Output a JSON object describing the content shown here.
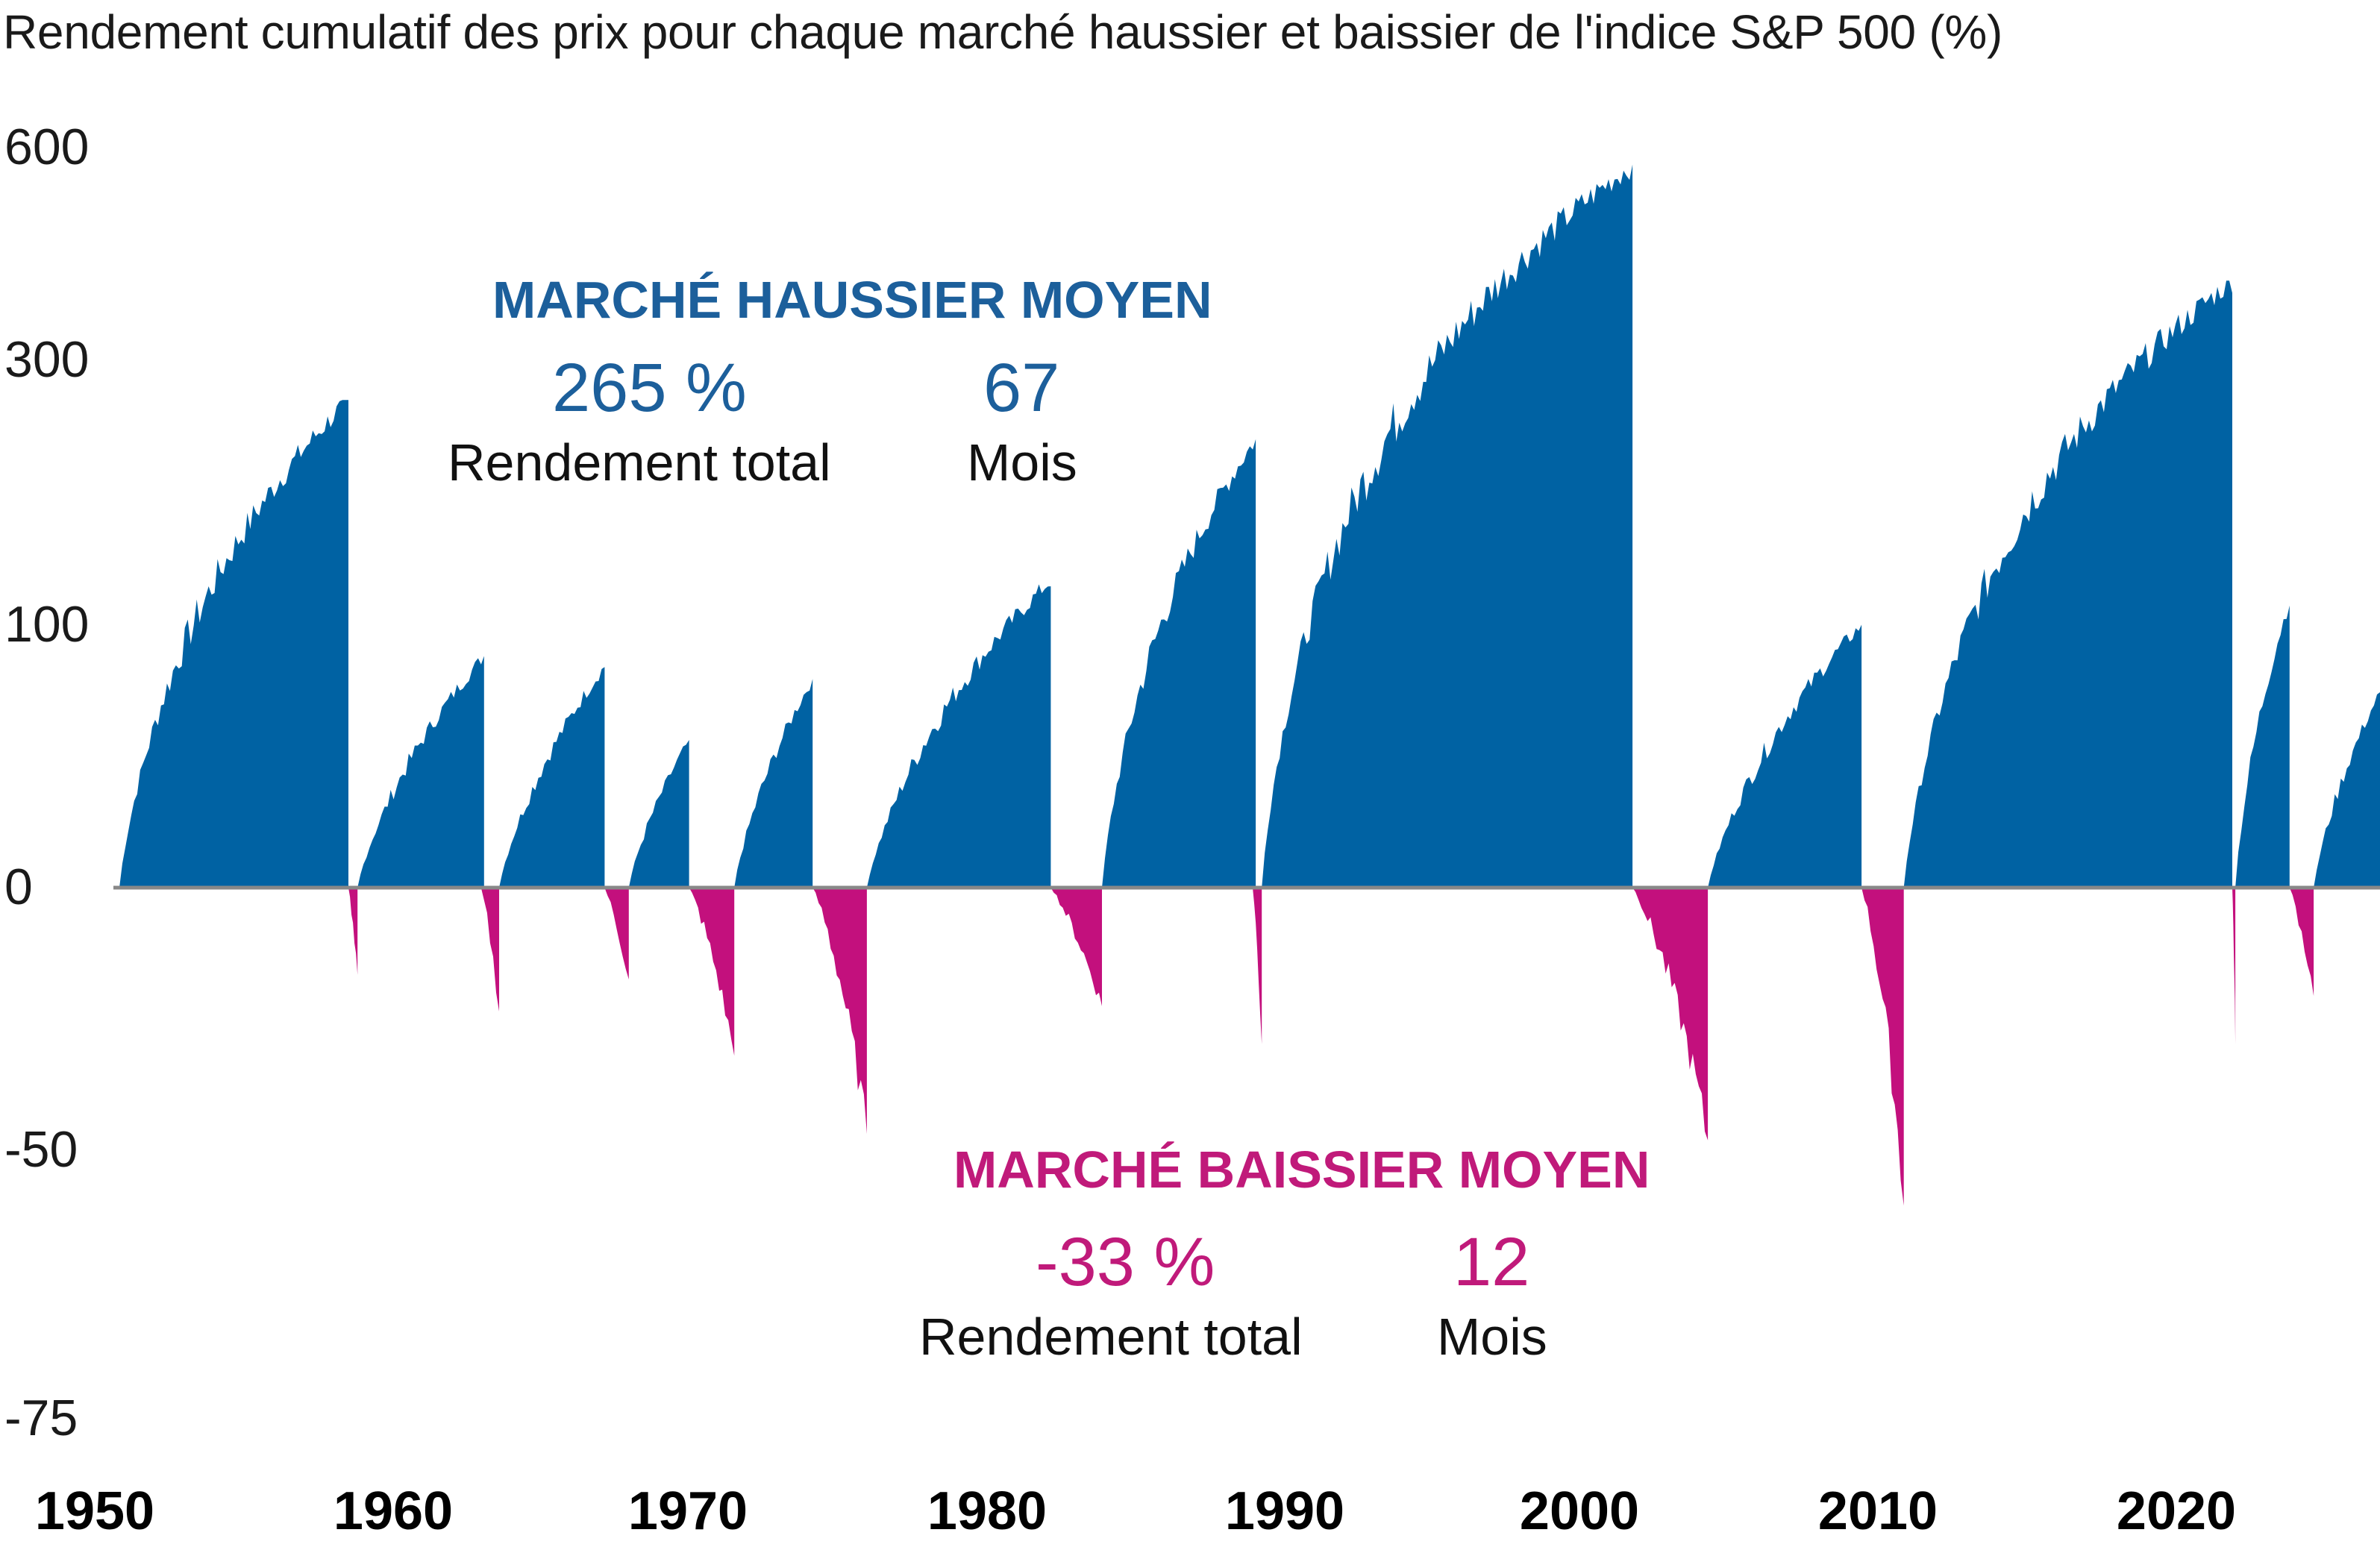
{
  "title": "Rendement cumulatif des prix pour chaque marché haussier et baissier de l'indice S&P 500 (%)",
  "colors": {
    "bull": "#0062a3",
    "bear": "#c3107d",
    "axis": "#888888",
    "text": "#1a1a1a"
  },
  "annotations": {
    "bull": {
      "heading": "MARCHÉ HAUSSIER MOYEN",
      "return_value": "265 %",
      "return_label": "Rendement total",
      "months_value": "67",
      "months_label": "Mois"
    },
    "bear": {
      "heading": "MARCHÉ BAISSIER MOYEN",
      "return_value": "-33 %",
      "return_label": "Rendement total",
      "months_value": "12",
      "months_label": "Mois"
    }
  },
  "chart_data": {
    "type": "area",
    "title": "Rendement cumulatif des prix pour chaque marché haussier et baissier de l'indice S&P 500 (%)",
    "xlabel": "",
    "ylabel": "",
    "y_ticks": [
      "600",
      "300",
      "100",
      "0",
      "-50",
      "-75"
    ],
    "x_ticks": [
      "1950",
      "1960",
      "1970",
      "1980",
      "1990",
      "2000",
      "2010",
      "2020"
    ],
    "xlim": [
      1950,
      2025
    ],
    "y_scale": "logarithmic (cumulative growth)",
    "grid": false,
    "legend": "none",
    "series": [
      {
        "name": "Marché haussier",
        "kind": "bull",
        "segments": [
          {
            "start": 1950.0,
            "end": 1957.6,
            "peak": 265
          },
          {
            "start": 1957.9,
            "end": 1962.1,
            "peak": 85
          },
          {
            "start": 1962.6,
            "end": 1966.1,
            "peak": 80
          },
          {
            "start": 1966.9,
            "end": 1968.9,
            "peak": 48
          },
          {
            "start": 1970.4,
            "end": 1973.0,
            "peak": 74
          },
          {
            "start": 1974.8,
            "end": 1980.9,
            "peak": 126
          },
          {
            "start": 1982.6,
            "end": 1987.7,
            "peak": 229
          },
          {
            "start": 1987.9,
            "end": 2000.2,
            "peak": 582
          },
          {
            "start": 2002.7,
            "end": 2007.8,
            "peak": 101
          },
          {
            "start": 2009.2,
            "end": 2020.1,
            "peak": 401
          },
          {
            "start": 2020.2,
            "end": 2022.0,
            "peak": 114
          },
          {
            "start": 2022.8,
            "end": 2025.0,
            "peak": 68
          }
        ]
      },
      {
        "name": "Marché baissier",
        "kind": "bear",
        "segments": [
          {
            "start": 1957.6,
            "end": 1957.9,
            "trough": -21
          },
          {
            "start": 1962.0,
            "end": 1962.6,
            "trough": -28
          },
          {
            "start": 1966.1,
            "end": 1966.9,
            "trough": -22
          },
          {
            "start": 1968.9,
            "end": 1970.4,
            "trough": -36
          },
          {
            "start": 1973.0,
            "end": 1974.8,
            "trough": -48
          },
          {
            "start": 1980.9,
            "end": 1982.6,
            "trough": -27
          },
          {
            "start": 1987.6,
            "end": 1987.9,
            "trough": -34
          },
          {
            "start": 2000.2,
            "end": 2002.7,
            "trough": -49
          },
          {
            "start": 2007.8,
            "end": 2009.2,
            "trough": -57
          },
          {
            "start": 2020.1,
            "end": 2020.2,
            "trough": -34
          },
          {
            "start": 2022.0,
            "end": 2022.8,
            "trough": -25
          }
        ]
      }
    ]
  }
}
